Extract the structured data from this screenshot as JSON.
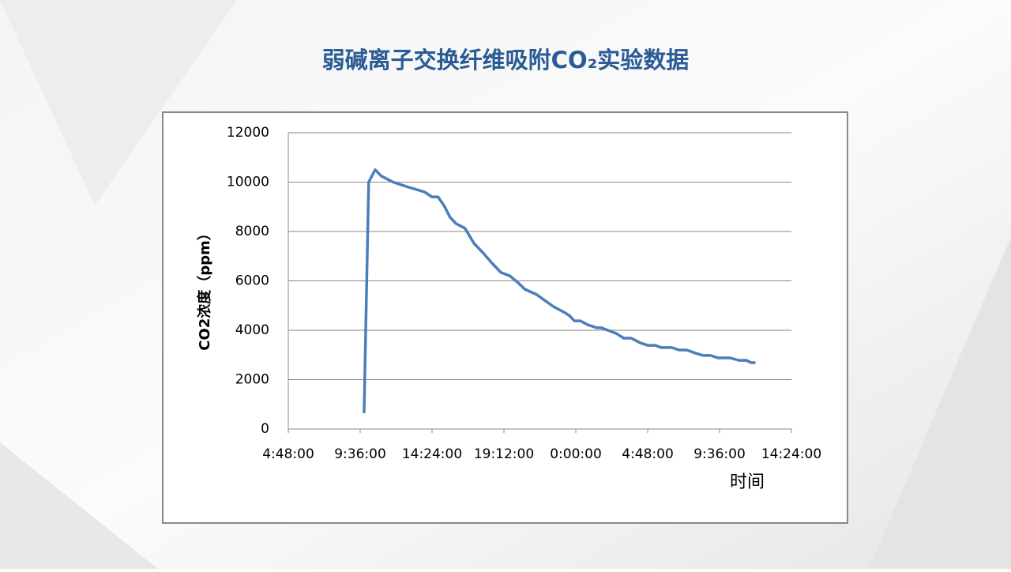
{
  "chart_data": {
    "type": "line",
    "title": "弱碱离子交换纤维吸附CO₂实验数据",
    "x_label": "时间",
    "y_label": "CO2浓度（ppm）",
    "x": [
      9.86,
      10.17,
      10.6,
      11.0,
      11.8,
      12.8,
      13.9,
      14.4,
      14.8,
      15.2,
      15.6,
      16.0,
      16.6,
      17.2,
      17.8,
      18.4,
      19.0,
      19.6,
      20.1,
      20.6,
      21.4,
      21.9,
      22.5,
      23.3,
      23.6,
      23.9,
      24.3,
      24.8,
      25.4,
      25.7,
      26.7,
      27.2,
      27.7,
      28.3,
      28.8,
      29.3,
      29.7,
      30.4,
      30.9,
      31.4,
      32.0,
      32.5,
      33.0,
      33.5,
      34.3,
      34.9,
      35.4,
      35.7,
      36.0
    ],
    "series": [
      {
        "name": "CO2",
        "color": "#4a7ebb",
        "values": [
          640,
          10000,
          10500,
          10250,
          10000,
          9800,
          9600,
          9400,
          9400,
          9050,
          8580,
          8320,
          8130,
          7520,
          7140,
          6720,
          6340,
          6200,
          5950,
          5660,
          5440,
          5220,
          4960,
          4700,
          4580,
          4380,
          4380,
          4220,
          4100,
          4100,
          3870,
          3680,
          3680,
          3490,
          3390,
          3390,
          3300,
          3300,
          3200,
          3200,
          3070,
          2980,
          2980,
          2880,
          2880,
          2780,
          2780,
          2690,
          2690
        ]
      }
    ],
    "xlim": [
      4.8,
      38.4
    ],
    "xticks": [
      {
        "value": 4.8,
        "label": "4:48:00"
      },
      {
        "value": 9.6,
        "label": "9:36:00"
      },
      {
        "value": 14.4,
        "label": "14:24:00"
      },
      {
        "value": 19.2,
        "label": "19:12:00"
      },
      {
        "value": 24,
        "label": "0:00:00"
      },
      {
        "value": 28.8,
        "label": "4:48:00"
      },
      {
        "value": 33.6,
        "label": "9:36:00"
      },
      {
        "value": 38.4,
        "label": "14:24:00"
      }
    ],
    "ylim": [
      0,
      12000
    ],
    "yticks": [
      0,
      2000,
      4000,
      6000,
      8000,
      10000,
      12000
    ],
    "grid": true
  }
}
